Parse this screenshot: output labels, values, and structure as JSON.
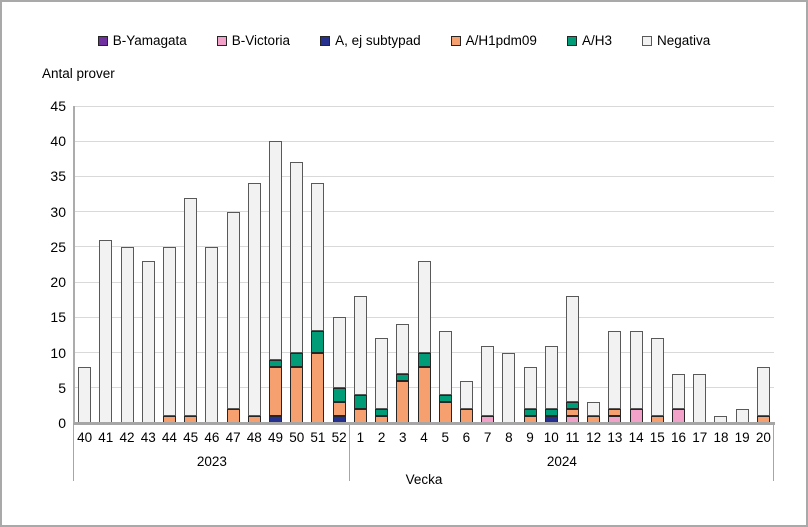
{
  "chart_data": {
    "type": "bar",
    "stacked": true,
    "ylabel": "Antal prover",
    "xlabel": "Vecka",
    "ylim": [
      0,
      45
    ],
    "ytick_step": 5,
    "grid": true,
    "legend_position": "top",
    "categories": [
      "40",
      "41",
      "42",
      "43",
      "44",
      "45",
      "46",
      "47",
      "48",
      "49",
      "50",
      "51",
      "52",
      "1",
      "2",
      "3",
      "4",
      "5",
      "6",
      "7",
      "8",
      "9",
      "10",
      "11",
      "12",
      "13",
      "14",
      "15",
      "16",
      "17",
      "18",
      "19",
      "20"
    ],
    "groups": [
      {
        "label": "2023",
        "count": 13
      },
      {
        "label": "2024",
        "count": 20
      }
    ],
    "series": [
      {
        "name": "B-Yamagata",
        "color": "#7030A0",
        "border": "#262626",
        "values": [
          0,
          0,
          0,
          0,
          0,
          0,
          0,
          0,
          0,
          0,
          0,
          0,
          0,
          0,
          0,
          0,
          0,
          0,
          0,
          0,
          0,
          0,
          0,
          0,
          0,
          0,
          0,
          0,
          0,
          0,
          0,
          0,
          0
        ]
      },
      {
        "name": "B-Victoria",
        "color": "#F2A2C8",
        "border": "#262626",
        "values": [
          0,
          0,
          0,
          0,
          0,
          0,
          0,
          0,
          0,
          0,
          0,
          0,
          0,
          0,
          0,
          0,
          0,
          0,
          0,
          1,
          0,
          0,
          0,
          1,
          0,
          1,
          2,
          0,
          2,
          0,
          0,
          0,
          0
        ]
      },
      {
        "name": "A, ej subtypad",
        "color": "#25308F",
        "border": "#262626",
        "values": [
          0,
          0,
          0,
          0,
          0,
          0,
          0,
          0,
          0,
          1,
          0,
          0,
          1,
          0,
          0,
          0,
          0,
          0,
          0,
          0,
          0,
          0,
          1,
          0,
          0,
          0,
          0,
          0,
          0,
          0,
          0,
          0,
          0
        ]
      },
      {
        "name": "A/H1pdm09",
        "color": "#F5A06E",
        "border": "#262626",
        "values": [
          0,
          0,
          0,
          0,
          1,
          1,
          0,
          2,
          1,
          7,
          8,
          10,
          2,
          2,
          1,
          6,
          8,
          3,
          2,
          0,
          0,
          1,
          0,
          1,
          1,
          1,
          0,
          1,
          0,
          0,
          0,
          0,
          1
        ]
      },
      {
        "name": "A/H3",
        "color": "#009C77",
        "border": "#262626",
        "values": [
          0,
          0,
          0,
          0,
          0,
          0,
          0,
          0,
          0,
          1,
          2,
          3,
          2,
          2,
          1,
          1,
          2,
          1,
          0,
          0,
          0,
          1,
          1,
          1,
          0,
          0,
          0,
          0,
          0,
          0,
          0,
          0,
          0
        ]
      },
      {
        "name": "Negativa",
        "color": "#F2F2F2",
        "border": "#595959",
        "values": [
          8,
          26,
          25,
          23,
          24,
          31,
          25,
          28,
          33,
          31,
          27,
          21,
          10,
          14,
          10,
          7,
          13,
          9,
          4,
          10,
          10,
          6,
          9,
          15,
          2,
          11,
          11,
          11,
          5,
          7,
          1,
          2,
          7
        ]
      }
    ]
  },
  "colors": {
    "gridline": "#D9D9D9",
    "axis": "#A6A6A6",
    "frame_border": "#A9A9A9",
    "text": "#000000"
  }
}
